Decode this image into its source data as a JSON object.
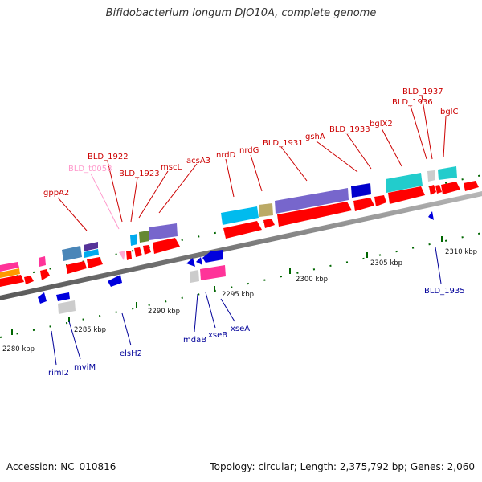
{
  "title": "Bifidobacterium longum DJO10A, complete genome",
  "footer": {
    "accession": "Accession: NC_010816",
    "summary": "Topology: circular; Length: 2,375,792 bp; Genes: 2,060"
  },
  "colors": {
    "forward_label": "#cc0000",
    "reverse_label": "#000099",
    "trna_label": "#ff99cc",
    "backbone": "#888888",
    "tick": "#006600"
  },
  "scale_labels": [
    "2280 kbp",
    "2285 kbp",
    "2290 kbp",
    "2295 kbp",
    "2300 kbp",
    "2305 kbp",
    "2310 kbp"
  ],
  "forward_genes": [
    "gppA2",
    "BLD_t0058",
    "BLD_1922",
    "BLD_1923",
    "mscL",
    "acsA3",
    "nrdD",
    "nrdG",
    "BLD_1931",
    "gshA",
    "BLD_1933",
    "bglX2",
    "BLD_1936",
    "BLD_1937",
    "bglC"
  ],
  "reverse_genes": [
    "rimI2",
    "mviM",
    "elsH2",
    "mdaB",
    "xseB",
    "xseA",
    "BLD_1935"
  ]
}
